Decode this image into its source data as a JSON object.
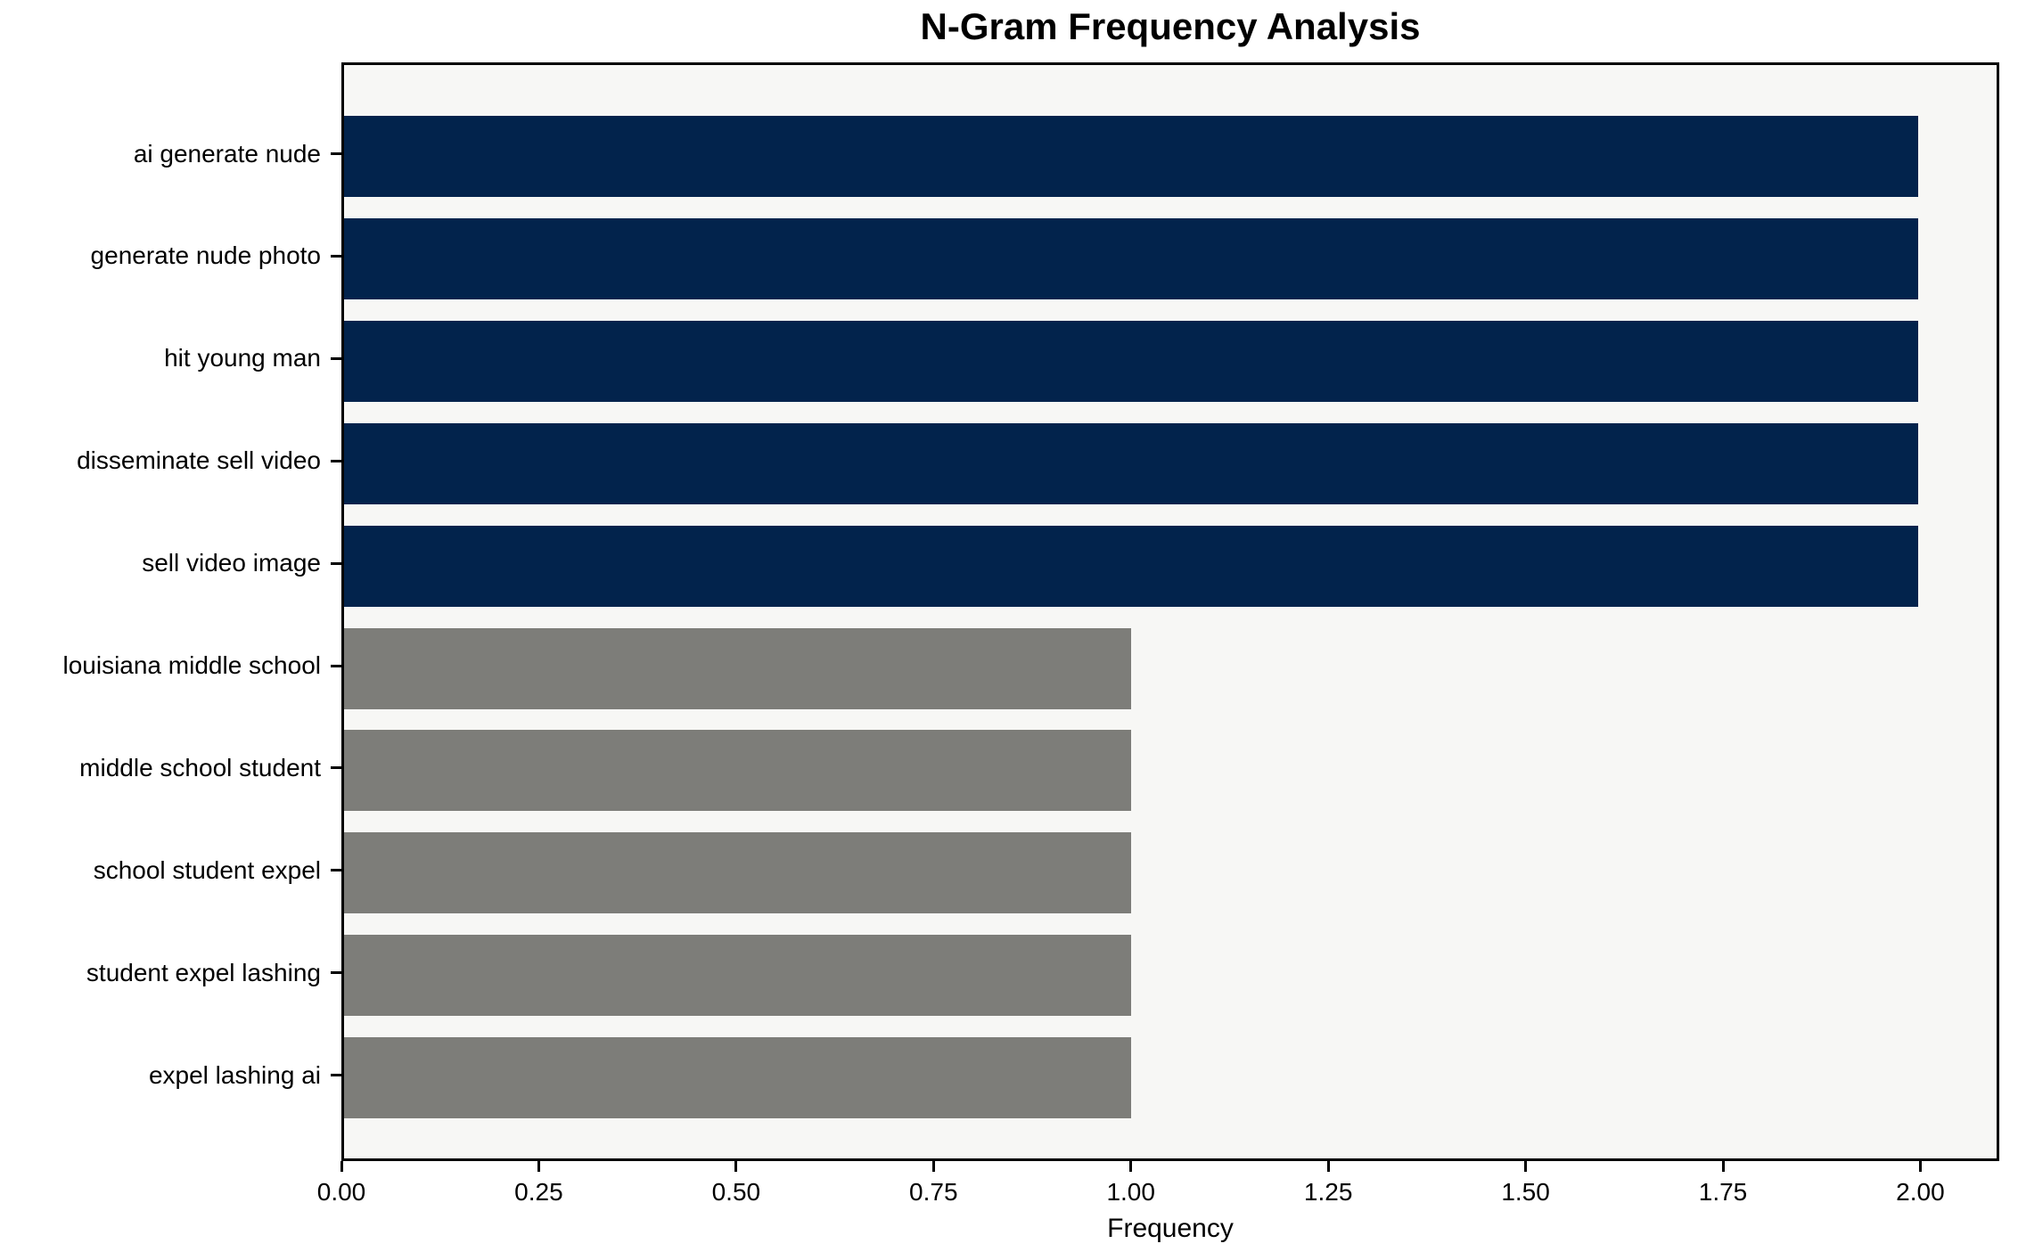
{
  "chart_data": {
    "type": "bar",
    "orientation": "horizontal",
    "title": "N-Gram Frequency Analysis",
    "xlabel": "Frequency",
    "ylabel": "",
    "categories": [
      "ai generate nude",
      "generate nude photo",
      "hit young man",
      "disseminate sell video",
      "sell video image",
      "louisiana middle school",
      "middle school student",
      "school student expel",
      "student expel lashing",
      "expel lashing ai"
    ],
    "values": [
      2,
      2,
      2,
      2,
      2,
      1,
      1,
      1,
      1,
      1
    ],
    "bar_colors": [
      "#02234c",
      "#02234c",
      "#02234c",
      "#02234c",
      "#02234c",
      "#7d7d79",
      "#7d7d79",
      "#7d7d79",
      "#7d7d79",
      "#7d7d79"
    ],
    "xlim": [
      0,
      2.1
    ],
    "xtick_values": [
      0.0,
      0.25,
      0.5,
      0.75,
      1.0,
      1.25,
      1.5,
      1.75,
      2.0
    ],
    "xtick_labels": [
      "0.00",
      "0.25",
      "0.50",
      "0.75",
      "1.00",
      "1.25",
      "1.50",
      "1.75",
      "2.00"
    ],
    "grid": false,
    "legend": false,
    "colors": {
      "high_freq_bar": "#02234c",
      "low_freq_bar": "#7d7d79",
      "plot_background": "#f7f7f5",
      "figure_background": "#ffffff",
      "spine": "#000000",
      "text": "#000000"
    }
  }
}
